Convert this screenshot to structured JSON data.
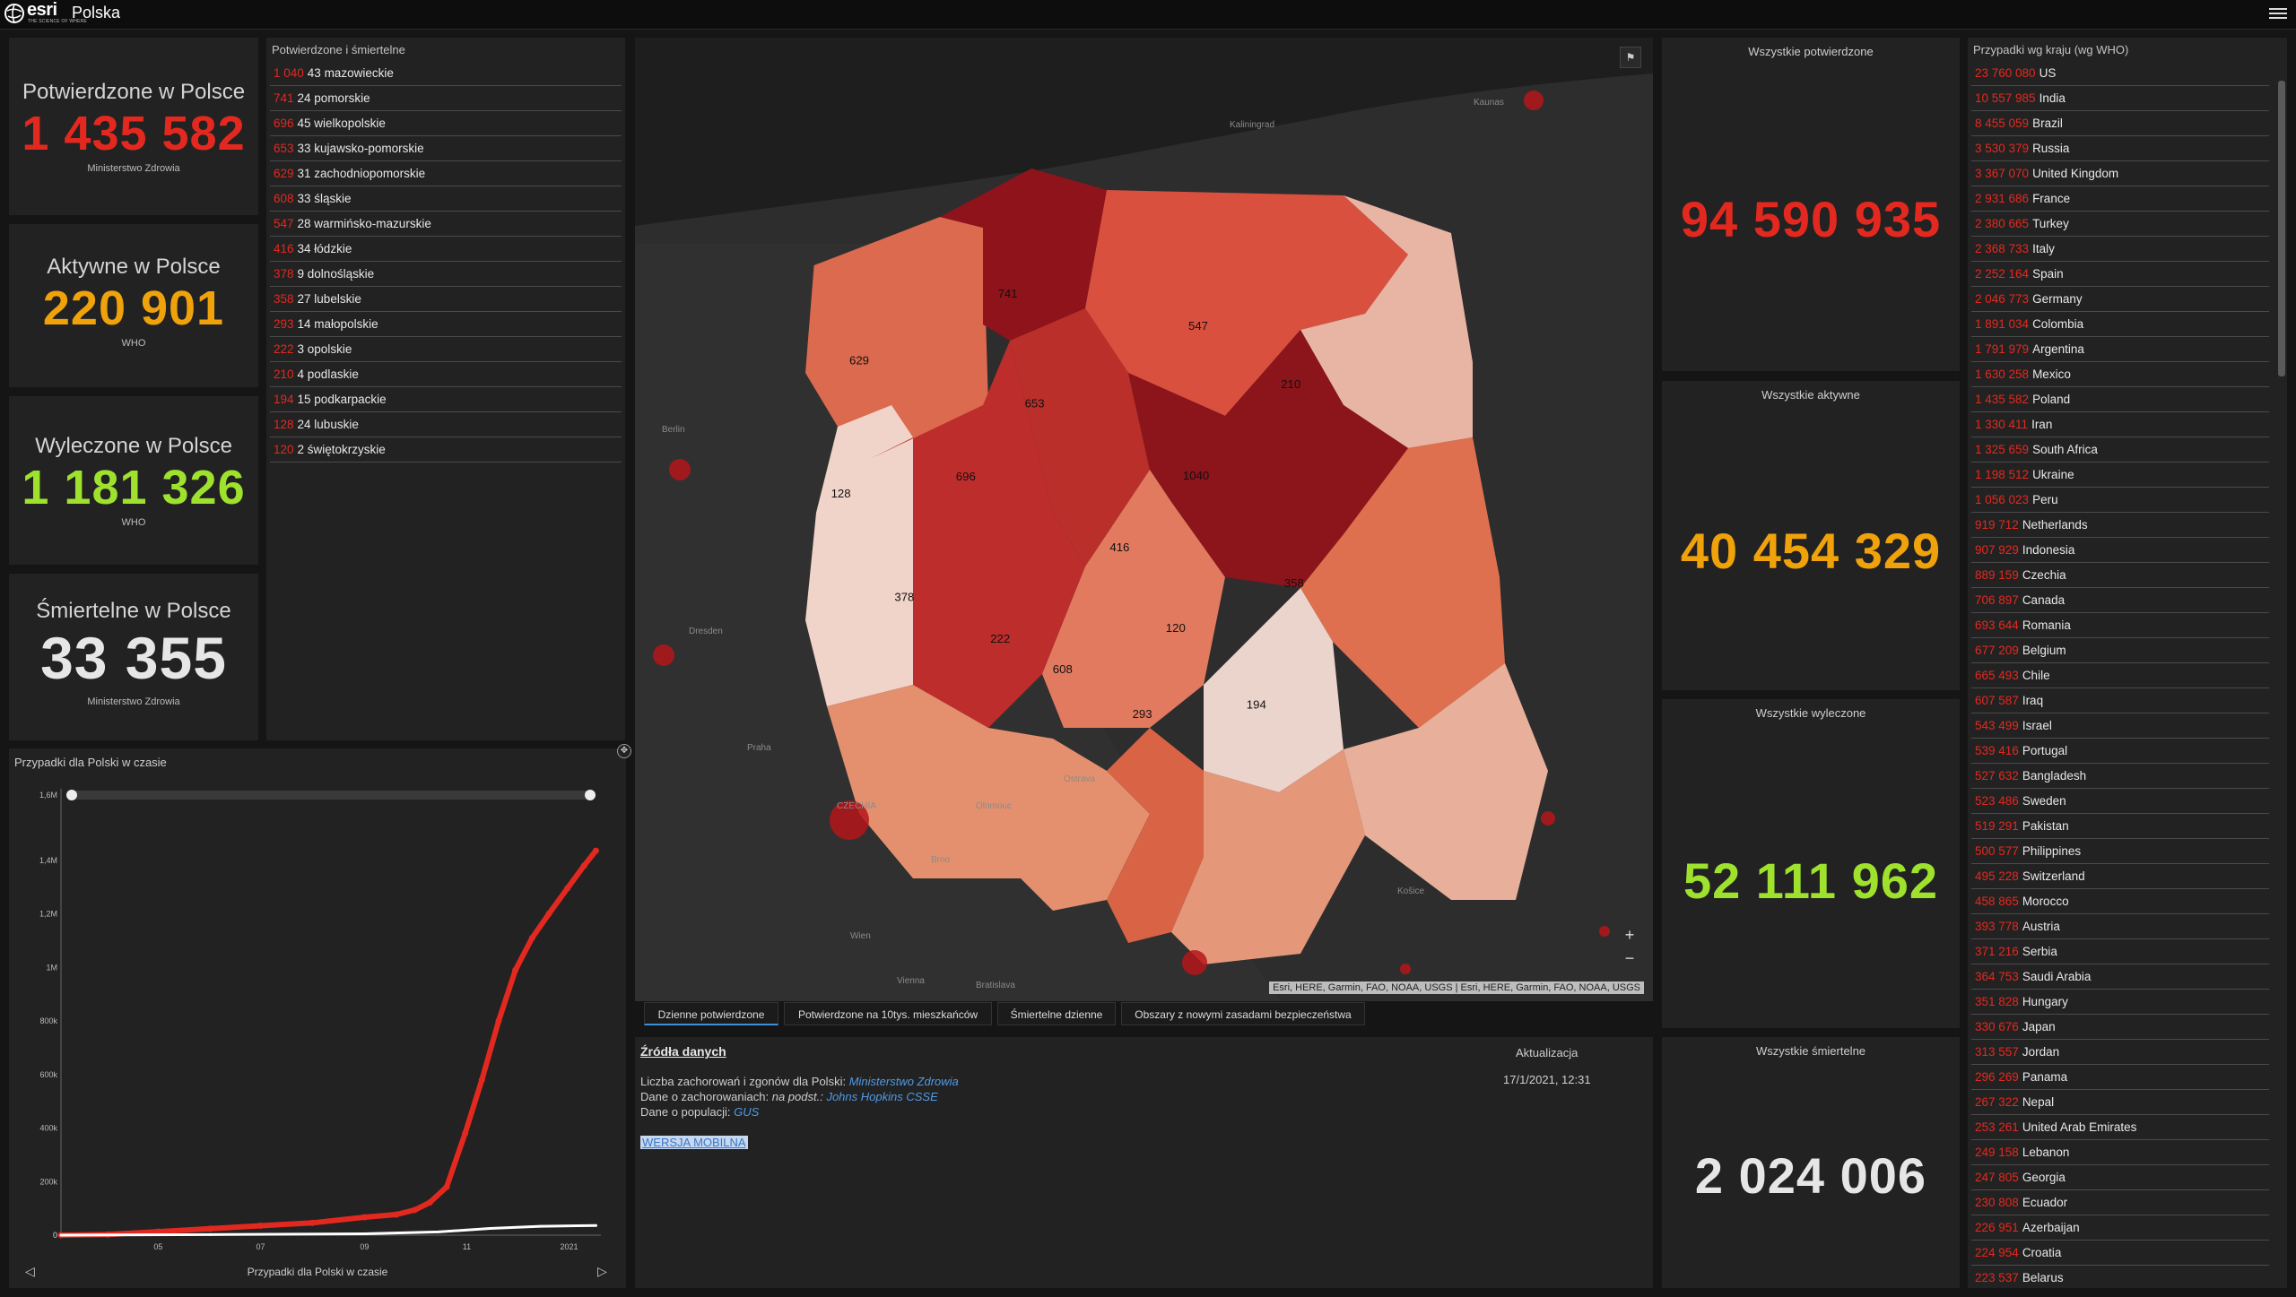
{
  "header": {
    "logo_text": "esri",
    "logo_tag": "THE SCIENCE OF WHERE",
    "title": "Polska"
  },
  "colors": {
    "red": "#e3291f",
    "orange": "#f0a20b",
    "green": "#9ee22d",
    "white": "#e6e6e6"
  },
  "kpi": [
    {
      "title": "Potwierdzone w Polsce",
      "value": "1 435 582",
      "source": "Ministerstwo Zdrowia",
      "color": "red"
    },
    {
      "title": "Aktywne w Polsce",
      "value": "220 901",
      "source": "WHO",
      "color": "orange"
    },
    {
      "title": "Wyleczone w Polsce",
      "value": "1 181 326",
      "source": "WHO",
      "color": "green"
    },
    {
      "title": "Śmiertelne w Polsce",
      "value": "33 355",
      "source": "Ministerstwo Zdrowia",
      "color": "white"
    }
  ],
  "regions": {
    "title": "Potwierdzone i śmiertelne",
    "items": [
      {
        "num": "1 040",
        "label": "43 mazowieckie"
      },
      {
        "num": "741",
        "label": "24 pomorskie"
      },
      {
        "num": "696",
        "label": "45 wielkopolskie"
      },
      {
        "num": "653",
        "label": "33 kujawsko-pomorskie"
      },
      {
        "num": "629",
        "label": "31 zachodniopomorskie"
      },
      {
        "num": "608",
        "label": "33 śląskie"
      },
      {
        "num": "547",
        "label": "28 warmińsko-mazurskie"
      },
      {
        "num": "416",
        "label": "34 łódzkie"
      },
      {
        "num": "378",
        "label": "9 dolnośląskie"
      },
      {
        "num": "358",
        "label": "27 lubelskie"
      },
      {
        "num": "293",
        "label": "14 małopolskie"
      },
      {
        "num": "222",
        "label": "3 opolskie"
      },
      {
        "num": "210",
        "label": "4 podlaskie"
      },
      {
        "num": "194",
        "label": "15 podkarpackie"
      },
      {
        "num": "128",
        "label": "24 lubuskie"
      },
      {
        "num": "120",
        "label": "2 świętokrzyskie"
      }
    ]
  },
  "chart_panel": {
    "title": "Przypadki dla Polski w czasie",
    "footer": "Przypadki dla Polski w czasie"
  },
  "chart_data": {
    "type": "line",
    "title": "Przypadki dla Polski w czasie",
    "xlabel": "",
    "ylabel": "",
    "x_ticks": [
      "05",
      "07",
      "09",
      "11",
      "2021"
    ],
    "y_ticks": [
      "0",
      "200k",
      "400k",
      "600k",
      "800k",
      "1M",
      "1,2M",
      "1,4M"
    ],
    "slider_ticks": [
      "1,6M",
      "0"
    ],
    "ylim": [
      0,
      1600000
    ],
    "series": [
      {
        "color": "#e3291f",
        "x": [
          "2020-03-04",
          "2020-04-01",
          "2020-05-01",
          "2020-06-01",
          "2020-07-01",
          "2020-08-01",
          "2020-09-01",
          "2020-09-20",
          "2020-10-01",
          "2020-10-10",
          "2020-10-20",
          "2020-10-31",
          "2020-11-10",
          "2020-11-20",
          "2020-11-30",
          "2020-12-10",
          "2020-12-20",
          "2020-12-31",
          "2021-01-10",
          "2021-01-17"
        ],
        "values": [
          1,
          2500,
          13000,
          24000,
          35000,
          46000,
          67000,
          77000,
          94000,
          122000,
          180000,
          380000,
          580000,
          800000,
          990000,
          1110000,
          1200000,
          1295000,
          1380000,
          1435582
        ]
      },
      {
        "color": "#ffffff",
        "x": [
          "2020-03-04",
          "2020-06-01",
          "2020-09-01",
          "2020-10-15",
          "2020-11-15",
          "2020-12-15",
          "2021-01-17"
        ],
        "values": [
          0,
          2000,
          5000,
          12000,
          25000,
          33000,
          36000
        ]
      }
    ]
  },
  "map": {
    "attribution": "Esri, HERE, Garmin, FAO, NOAA, USGS | Esri, HERE, Garmin, FAO, NOAA, USGS",
    "zoom_in": "+",
    "zoom_out": "−",
    "places": [
      "Kaliningrad",
      "Berlin",
      "Dresden",
      "Praha",
      "Brno",
      "Wien",
      "Kaunas",
      "Bratislava",
      "Vienna",
      "CZECHIA",
      "Košice",
      "Ostrava",
      "Olomouc"
    ],
    "voivodeships": [
      {
        "name": "zachodniopomorskie",
        "value": 629
      },
      {
        "name": "pomorskie",
        "value": 741
      },
      {
        "name": "warmińsko-mazurskie",
        "value": 547
      },
      {
        "name": "podlaskie",
        "value": 210
      },
      {
        "name": "lubuskie",
        "value": 128
      },
      {
        "name": "wielkopolskie",
        "value": 696
      },
      {
        "name": "kujawsko-pomorskie",
        "value": 653
      },
      {
        "name": "mazowieckie",
        "value": 1040
      },
      {
        "name": "łódzkie",
        "value": 416
      },
      {
        "name": "lubelskie",
        "value": 358
      },
      {
        "name": "dolnośląskie",
        "value": 378
      },
      {
        "name": "opolskie",
        "value": 222
      },
      {
        "name": "świętokrzyskie",
        "value": 120
      },
      {
        "name": "śląskie",
        "value": 608
      },
      {
        "name": "małopolskie",
        "value": 293
      },
      {
        "name": "podkarpackie",
        "value": 194
      }
    ]
  },
  "tabs": [
    {
      "label": "Dzienne potwierdzone",
      "active": true
    },
    {
      "label": "Potwierdzone na 10tys. mieszkańców",
      "active": false
    },
    {
      "label": "Śmiertelne dzienne",
      "active": false
    },
    {
      "label": "Obszary z nowymi zasadami bezpieczeństwa",
      "active": false
    }
  ],
  "sources": {
    "heading": "Źródła danych",
    "line1_label": "Liczba zachorowań i zgonów dla Polski:",
    "line1_link": "Ministerstwo Zdrowia",
    "line2_label": "Dane o zachorowaniach:",
    "line2_mid": "na podst.:",
    "line2_link": "Johns Hopkins CSSE",
    "line3_label": "Dane o populacji:",
    "line3_link": "GUS",
    "mobile_link": "WERSJA MOBILNA",
    "update_label": "Aktualizacja",
    "update_value": "17/1/2021, 12:31"
  },
  "world": [
    {
      "title": "Wszystkie potwierdzone",
      "value": "94 590 935",
      "color": "red"
    },
    {
      "title": "Wszystkie aktywne",
      "value": "40 454 329",
      "color": "orange"
    },
    {
      "title": "Wszystkie wyleczone",
      "value": "52 111 962",
      "color": "green"
    },
    {
      "title": "Wszystkie śmiertelne",
      "value": "2 024 006",
      "color": "white"
    }
  ],
  "countries": {
    "title": "Przypadki wg kraju (wg WHO)",
    "items": [
      {
        "num": "23 760 080",
        "label": "US"
      },
      {
        "num": "10 557 985",
        "label": "India"
      },
      {
        "num": "8 455 059",
        "label": "Brazil"
      },
      {
        "num": "3 530 379",
        "label": "Russia"
      },
      {
        "num": "3 367 070",
        "label": "United Kingdom"
      },
      {
        "num": "2 931 686",
        "label": "France"
      },
      {
        "num": "2 380 665",
        "label": "Turkey"
      },
      {
        "num": "2 368 733",
        "label": "Italy"
      },
      {
        "num": "2 252 164",
        "label": "Spain"
      },
      {
        "num": "2 046 773",
        "label": "Germany"
      },
      {
        "num": "1 891 034",
        "label": "Colombia"
      },
      {
        "num": "1 791 979",
        "label": "Argentina"
      },
      {
        "num": "1 630 258",
        "label": "Mexico"
      },
      {
        "num": "1 435 582",
        "label": "Poland"
      },
      {
        "num": "1 330 411",
        "label": "Iran"
      },
      {
        "num": "1 325 659",
        "label": "South Africa"
      },
      {
        "num": "1 198 512",
        "label": "Ukraine"
      },
      {
        "num": "1 056 023",
        "label": "Peru"
      },
      {
        "num": "919 712",
        "label": "Netherlands"
      },
      {
        "num": "907 929",
        "label": "Indonesia"
      },
      {
        "num": "889 159",
        "label": "Czechia"
      },
      {
        "num": "706 897",
        "label": "Canada"
      },
      {
        "num": "693 644",
        "label": "Romania"
      },
      {
        "num": "677 209",
        "label": "Belgium"
      },
      {
        "num": "665 493",
        "label": "Chile"
      },
      {
        "num": "607 587",
        "label": "Iraq"
      },
      {
        "num": "543 499",
        "label": "Israel"
      },
      {
        "num": "539 416",
        "label": "Portugal"
      },
      {
        "num": "527 632",
        "label": "Bangladesh"
      },
      {
        "num": "523 486",
        "label": "Sweden"
      },
      {
        "num": "519 291",
        "label": "Pakistan"
      },
      {
        "num": "500 577",
        "label": "Philippines"
      },
      {
        "num": "495 228",
        "label": "Switzerland"
      },
      {
        "num": "458 865",
        "label": "Morocco"
      },
      {
        "num": "393 778",
        "label": "Austria"
      },
      {
        "num": "371 216",
        "label": "Serbia"
      },
      {
        "num": "364 753",
        "label": "Saudi Arabia"
      },
      {
        "num": "351 828",
        "label": "Hungary"
      },
      {
        "num": "330 676",
        "label": "Japan"
      },
      {
        "num": "313 557",
        "label": "Jordan"
      },
      {
        "num": "296 269",
        "label": "Panama"
      },
      {
        "num": "267 322",
        "label": "Nepal"
      },
      {
        "num": "253 261",
        "label": "United Arab Emirates"
      },
      {
        "num": "249 158",
        "label": "Lebanon"
      },
      {
        "num": "247 805",
        "label": "Georgia"
      },
      {
        "num": "230 808",
        "label": "Ecuador"
      },
      {
        "num": "226 951",
        "label": "Azerbaijan"
      },
      {
        "num": "224 954",
        "label": "Croatia"
      },
      {
        "num": "223 537",
        "label": "Belarus"
      }
    ]
  }
}
